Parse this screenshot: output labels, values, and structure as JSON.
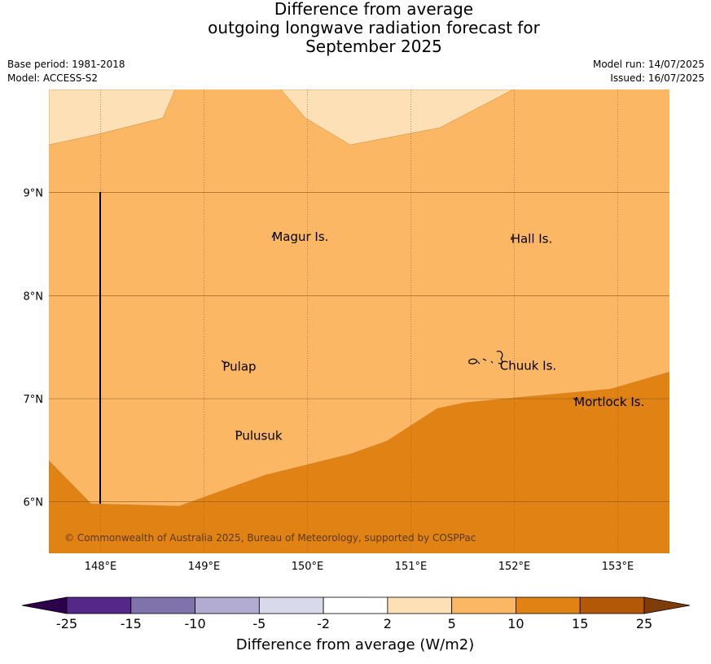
{
  "title": {
    "line1": "Difference from average",
    "line2": "outgoing longwave radiation forecast for",
    "line3": "September 2025"
  },
  "meta": {
    "base_period": "Base period: 1981-2018",
    "model": "Model: ACCESS-S2",
    "model_run": "Model run: 14/07/2025",
    "issued": "Issued: 16/07/2025"
  },
  "map": {
    "lon_range": [
      147.5,
      153.5
    ],
    "lat_range": [
      5.5,
      10.0
    ],
    "lon_ticks": [
      {
        "value": 148,
        "label": "148°E"
      },
      {
        "value": 149,
        "label": "149°E"
      },
      {
        "value": 150,
        "label": "150°E"
      },
      {
        "value": 151,
        "label": "151°E"
      },
      {
        "value": 152,
        "label": "152°E"
      },
      {
        "value": 153,
        "label": "153°E"
      }
    ],
    "lat_ticks": [
      {
        "value": 9,
        "label": "9°N"
      },
      {
        "value": 8,
        "label": "8°N"
      },
      {
        "value": 7,
        "label": "7°N"
      },
      {
        "value": 6,
        "label": "6°N"
      }
    ],
    "places": [
      {
        "name": "Magur Is.",
        "lon": 149.66,
        "lat": 8.57
      },
      {
        "name": "Hall Is.",
        "lon": 151.97,
        "lat": 8.55
      },
      {
        "name": "Pulap",
        "lon": 149.18,
        "lat": 7.31
      },
      {
        "name": "Chuuk Is.",
        "lon": 151.86,
        "lat": 7.32
      },
      {
        "name": "Mortlock Is.",
        "lon": 152.58,
        "lat": 6.97
      },
      {
        "name": "Pulusuk",
        "lon": 149.3,
        "lat": 6.64
      }
    ],
    "colors": {
      "band_2_5": "#fde0b6",
      "band_5_10": "#fbb763",
      "band_10_15": "#e08214",
      "gridline": "#8a5a1e"
    },
    "copyright": "© Commonwealth of Australia 2025, Bureau of Meteorology, supported by COSPPac"
  },
  "colorbar": {
    "title": "Difference from average (W/m2)",
    "ticks": [
      "-25",
      "-15",
      "-10",
      "-5",
      "-2",
      "2",
      "5",
      "10",
      "15",
      "25"
    ],
    "colors": [
      "#2d004b",
      "#542788",
      "#8073ac",
      "#b2abd2",
      "#d8daeb",
      "#ffffff",
      "#fde0b6",
      "#fbb763",
      "#e08214",
      "#b35806",
      "#7f3b08"
    ]
  }
}
